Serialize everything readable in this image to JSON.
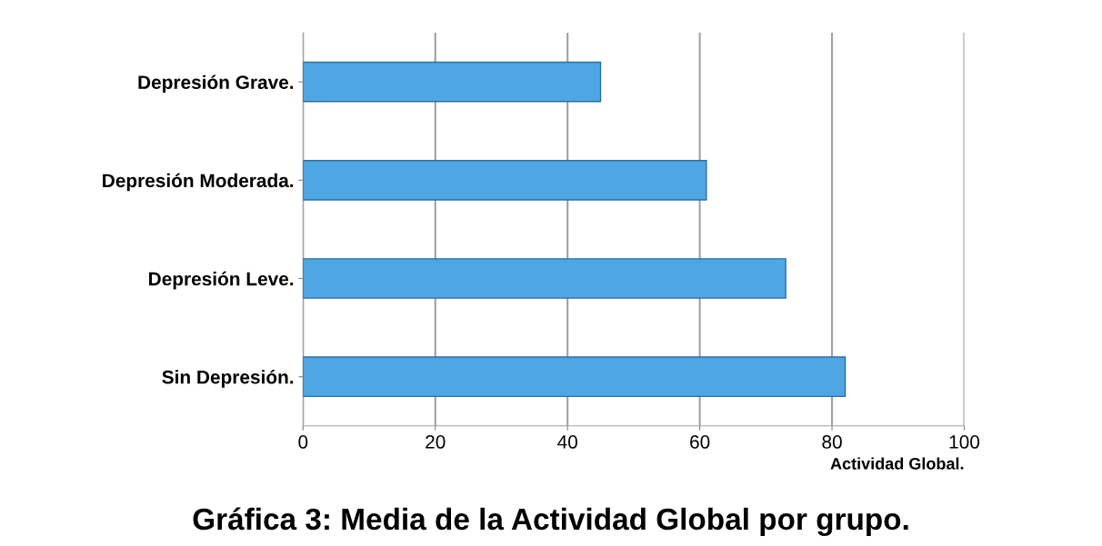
{
  "chart_data": {
    "type": "bar",
    "orientation": "horizontal",
    "title": "Gráfica 3: Media de la Actividad Global por grupo.",
    "xlabel": "Actividad Global.",
    "categories": [
      "Depresión Grave.",
      "Depresión Moderada.",
      "Depresión Leve.",
      "Sin Depresión."
    ],
    "values": [
      45,
      61,
      73,
      82
    ],
    "color": "#4fa6e3",
    "xlim": [
      0,
      100
    ],
    "xticks": [
      0,
      20,
      40,
      60,
      80,
      100
    ],
    "grid": "x",
    "legend": false
  }
}
